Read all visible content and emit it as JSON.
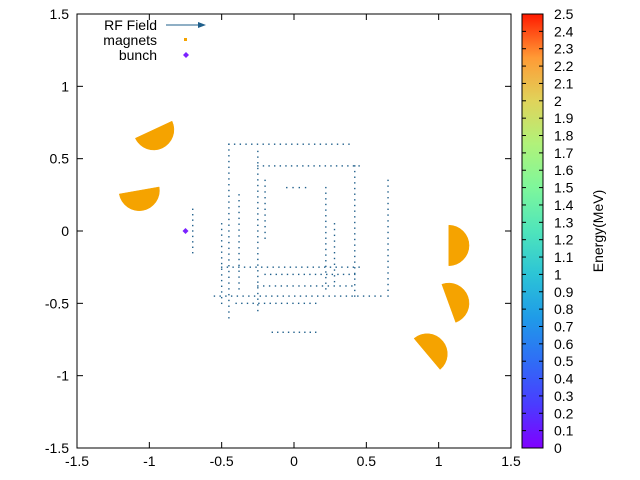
{
  "chart_data": {
    "type": "scatter",
    "title": "",
    "xlim": [
      -1.5,
      1.5
    ],
    "ylim": [
      -1.5,
      1.5
    ],
    "xticks": [
      "-1.5",
      "-1",
      "-0.5",
      "0",
      "0.5",
      "1",
      "1.5"
    ],
    "yticks": [
      "1.5",
      "1",
      "0.5",
      "0",
      "-0.5",
      "-1",
      "-1.5"
    ],
    "xtick_values": [
      -1.5,
      -1,
      -0.5,
      0,
      0.5,
      1,
      1.5
    ],
    "ytick_values": [
      1.5,
      1,
      0.5,
      0,
      -0.5,
      -1,
      -1.5
    ],
    "grid": false,
    "legend_position": "top-left",
    "legend": [
      {
        "label": "RF Field",
        "marker": "arrow",
        "color": "#1f5f8b"
      },
      {
        "label": "magnets",
        "marker": "square",
        "color": "#f5a300"
      },
      {
        "label": "bunch",
        "marker": "diamond",
        "color": "#7b22ff"
      }
    ],
    "colorbar": {
      "label": "Energy(MeV)",
      "range": [
        0,
        2.5
      ],
      "ticks": [
        "2.5",
        "2.4",
        "2.3",
        "2.2",
        "2.1",
        "2",
        "1.9",
        "1.8",
        "1.7",
        "1.6",
        "1.5",
        "1.4",
        "1.3",
        "1.2",
        "1.1",
        "1",
        "0.9",
        "0.8",
        "0.7",
        "0.6",
        "0.5",
        "0.4",
        "0.3",
        "0.2",
        "0.1",
        "0"
      ],
      "tick_values": [
        2.5,
        2.4,
        2.3,
        2.2,
        2.1,
        2.0,
        1.9,
        1.8,
        1.7,
        1.6,
        1.5,
        1.4,
        1.3,
        1.2,
        1.1,
        1.0,
        0.9,
        0.8,
        0.7,
        0.6,
        0.5,
        0.4,
        0.3,
        0.2,
        0.1,
        0.0
      ]
    },
    "magnets": {
      "color": "#f5a300",
      "radius": 0.14,
      "items": [
        {
          "cx": -0.97,
          "cy": 0.7,
          "angle_deg": -65
        },
        {
          "cx": -1.07,
          "cy": 0.28,
          "angle_deg": -80
        },
        {
          "cx": 1.07,
          "cy": -0.1,
          "angle_deg": 0
        },
        {
          "cx": 1.07,
          "cy": -0.5,
          "angle_deg": 20
        },
        {
          "cx": 0.92,
          "cy": -0.85,
          "angle_deg": 40
        }
      ]
    },
    "bunch": {
      "color": "#7b22ff",
      "x": -0.75,
      "y": 0.0
    },
    "rf_field": {
      "color": "#1f5f8b",
      "segments": [
        {
          "x1": -0.45,
          "y1": 0.6,
          "x2": 0.38,
          "y2": 0.6
        },
        {
          "x1": -0.25,
          "y1": 0.45,
          "x2": 0.45,
          "y2": 0.45
        },
        {
          "x1": -0.05,
          "y1": 0.3,
          "x2": 0.08,
          "y2": 0.3
        },
        {
          "x1": -0.5,
          "y1": -0.25,
          "x2": 0.45,
          "y2": -0.25
        },
        {
          "x1": -0.2,
          "y1": -0.3,
          "x2": 0.42,
          "y2": -0.3
        },
        {
          "x1": -0.25,
          "y1": -0.38,
          "x2": 0.4,
          "y2": -0.38
        },
        {
          "x1": -0.55,
          "y1": -0.45,
          "x2": 0.6,
          "y2": -0.45
        },
        {
          "x1": -0.4,
          "y1": -0.5,
          "x2": 0.15,
          "y2": -0.5
        },
        {
          "x1": -0.15,
          "y1": -0.7,
          "x2": 0.15,
          "y2": -0.7
        },
        {
          "x1": -0.45,
          "y1": 0.6,
          "x2": -0.45,
          "y2": -0.6
        },
        {
          "x1": -0.25,
          "y1": 0.55,
          "x2": -0.25,
          "y2": -0.55
        },
        {
          "x1": -0.38,
          "y1": 0.25,
          "x2": -0.38,
          "y2": -0.4
        },
        {
          "x1": -0.2,
          "y1": 0.35,
          "x2": -0.2,
          "y2": -0.05
        },
        {
          "x1": 0.22,
          "y1": 0.3,
          "x2": 0.22,
          "y2": -0.4
        },
        {
          "x1": 0.42,
          "y1": 0.45,
          "x2": 0.42,
          "y2": -0.45
        },
        {
          "x1": 0.65,
          "y1": 0.35,
          "x2": 0.65,
          "y2": -0.45
        },
        {
          "x1": 0.28,
          "y1": 0.05,
          "x2": 0.28,
          "y2": -0.35
        },
        {
          "x1": -0.7,
          "y1": 0.15,
          "x2": -0.7,
          "y2": -0.15
        },
        {
          "x1": -0.5,
          "y1": 0.05,
          "x2": -0.5,
          "y2": -0.5
        }
      ]
    }
  }
}
